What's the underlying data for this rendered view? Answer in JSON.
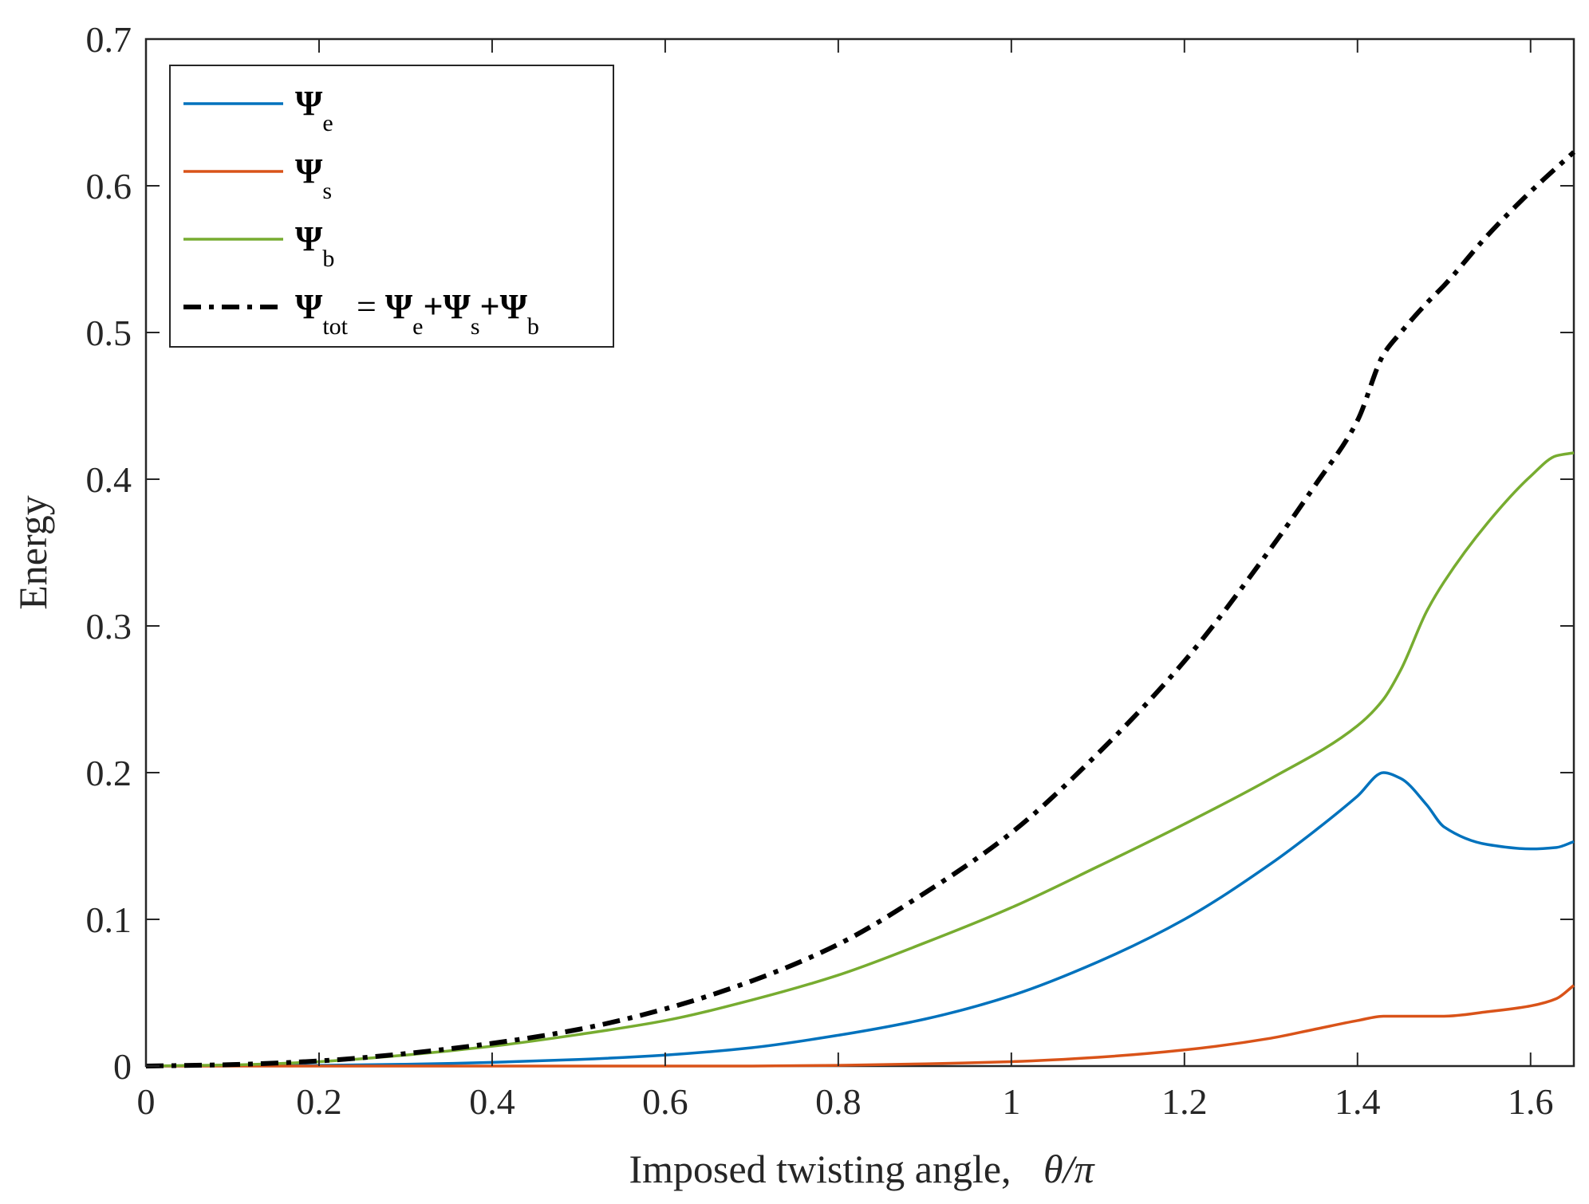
{
  "chart_data": {
    "type": "line",
    "title": "",
    "xlabel": "Imposed twisting angle,",
    "xlabel_symbol": "θ/π",
    "ylabel": "Energy",
    "xlim": [
      0,
      1.65
    ],
    "ylim": [
      0,
      0.7
    ],
    "xticks": [
      0,
      0.2,
      0.4,
      0.6,
      0.8,
      1,
      1.2,
      1.4,
      1.6
    ],
    "xtick_labels": [
      "0",
      "0.2",
      "0.4",
      "0.6",
      "0.8",
      "1",
      "1.2",
      "1.4",
      "1.6"
    ],
    "yticks": [
      0,
      0.1,
      0.2,
      0.3,
      0.4,
      0.5,
      0.6,
      0.7
    ],
    "ytick_labels": [
      "0",
      "0.1",
      "0.2",
      "0.3",
      "0.4",
      "0.5",
      "0.6",
      "0.7"
    ],
    "grid": false,
    "legend_position": "top-left",
    "series": [
      {
        "name": "Ψe",
        "legend_main": "Ψ",
        "legend_sub": "e",
        "color": "#0072BD",
        "style": "solid",
        "x": [
          0,
          0.1,
          0.2,
          0.3,
          0.4,
          0.5,
          0.6,
          0.7,
          0.8,
          0.9,
          1.0,
          1.1,
          1.2,
          1.3,
          1.35,
          1.4,
          1.43,
          1.45,
          1.48,
          1.5,
          1.55,
          1.6,
          1.63,
          1.65
        ],
        "y": [
          0,
          0.0002,
          0.0005,
          0.0012,
          0.0025,
          0.0045,
          0.0075,
          0.0125,
          0.021,
          0.032,
          0.048,
          0.071,
          0.1,
          0.138,
          0.16,
          0.184,
          0.2,
          0.196,
          0.178,
          0.163,
          0.151,
          0.148,
          0.149,
          0.153
        ]
      },
      {
        "name": "Ψs",
        "legend_main": "Ψ",
        "legend_sub": "s",
        "color": "#D95319",
        "style": "solid",
        "x": [
          0,
          0.2,
          0.4,
          0.6,
          0.7,
          0.8,
          0.9,
          1.0,
          1.1,
          1.2,
          1.3,
          1.35,
          1.4,
          1.43,
          1.5,
          1.55,
          1.6,
          1.63,
          1.65
        ],
        "y": [
          0,
          0,
          0,
          0,
          0,
          0.0005,
          0.0015,
          0.003,
          0.006,
          0.011,
          0.019,
          0.025,
          0.031,
          0.034,
          0.034,
          0.037,
          0.041,
          0.046,
          0.055
        ]
      },
      {
        "name": "Ψb",
        "legend_main": "Ψ",
        "legend_sub": "b",
        "color": "#77AC30",
        "style": "solid",
        "x": [
          0,
          0.1,
          0.2,
          0.3,
          0.4,
          0.5,
          0.6,
          0.7,
          0.8,
          0.9,
          1.0,
          1.1,
          1.2,
          1.3,
          1.4,
          1.43,
          1.45,
          1.48,
          1.5,
          1.55,
          1.6,
          1.63,
          1.65
        ],
        "y": [
          0,
          0.0008,
          0.003,
          0.0075,
          0.0135,
          0.0215,
          0.031,
          0.045,
          0.062,
          0.084,
          0.108,
          0.136,
          0.165,
          0.196,
          0.232,
          0.25,
          0.27,
          0.31,
          0.33,
          0.37,
          0.402,
          0.416,
          0.418
        ]
      },
      {
        "name": "Ψtot = Ψe+Ψs+Ψb",
        "legend_main": "Ψ",
        "legend_sub": "tot",
        "legend_rest": [
          {
            "t": " = ",
            "sub": false
          },
          {
            "t": "Ψ",
            "sub": false
          },
          {
            "t": "e",
            "sub": true
          },
          {
            "t": "+Ψ",
            "sub": false
          },
          {
            "t": "s",
            "sub": true
          },
          {
            "t": "+Ψ",
            "sub": false
          },
          {
            "t": "b",
            "sub": true
          }
        ],
        "color": "#000000",
        "style": "dashdot",
        "x": [
          0,
          0.1,
          0.2,
          0.3,
          0.4,
          0.5,
          0.6,
          0.7,
          0.8,
          0.9,
          1.0,
          1.1,
          1.2,
          1.3,
          1.35,
          1.4,
          1.43,
          1.45,
          1.48,
          1.5,
          1.55,
          1.6,
          1.65
        ],
        "y": [
          0,
          0.001,
          0.0035,
          0.0085,
          0.0155,
          0.025,
          0.039,
          0.058,
          0.083,
          0.118,
          0.159,
          0.213,
          0.276,
          0.353,
          0.395,
          0.44,
          0.485,
          0.5,
          0.52,
          0.532,
          0.566,
          0.596,
          0.623
        ]
      }
    ]
  }
}
